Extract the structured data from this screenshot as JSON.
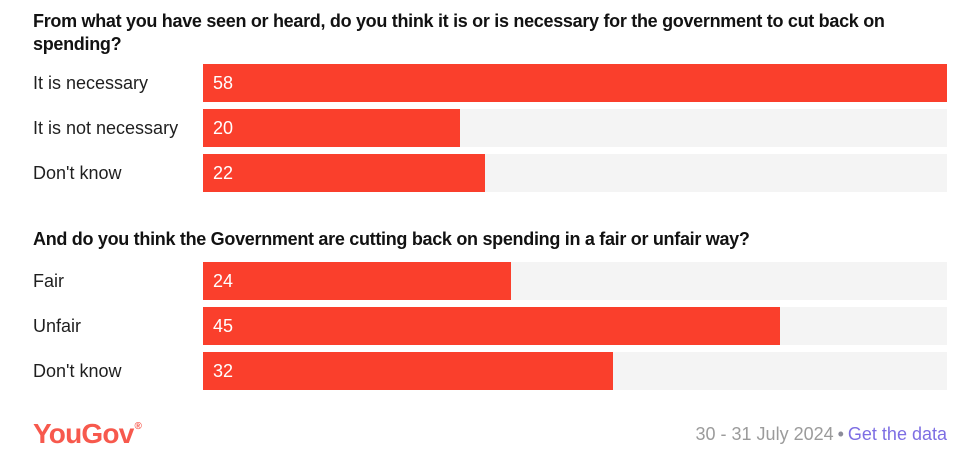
{
  "bar_scale_max": 58,
  "chart_data": [
    {
      "type": "bar",
      "orientation": "horizontal",
      "title": "From what you have seen or heard, do you think it is or is necessary for the government to cut back on spending?",
      "categories": [
        "It is necessary",
        "It is not necessary",
        "Don't know"
      ],
      "values": [
        58,
        20,
        22
      ],
      "xlim": [
        0,
        58
      ],
      "data_labels": "inside-left, white",
      "legend": "none",
      "grid": "off"
    },
    {
      "type": "bar",
      "orientation": "horizontal",
      "title": "And do you think the Government are cutting back on spending in a fair or unfair way?",
      "categories": [
        "Fair",
        "Unfair",
        "Don't know"
      ],
      "values": [
        24,
        45,
        32
      ],
      "xlim": [
        0,
        58
      ],
      "data_labels": "inside-left, white",
      "legend": "none",
      "grid": "off"
    }
  ],
  "footer": {
    "logo": "YouGov",
    "registered_mark": "®",
    "date_range": "30 - 31 July 2024",
    "separator": "•",
    "link_label": "Get the data"
  },
  "colors": {
    "bar_red": "#fa3f2c",
    "track_gray": "#f4f4f4",
    "logo_coral": "#f7594d",
    "link_purple": "#7d6ee3",
    "date_gray": "#9b9b9b",
    "text_black": "#121212"
  }
}
